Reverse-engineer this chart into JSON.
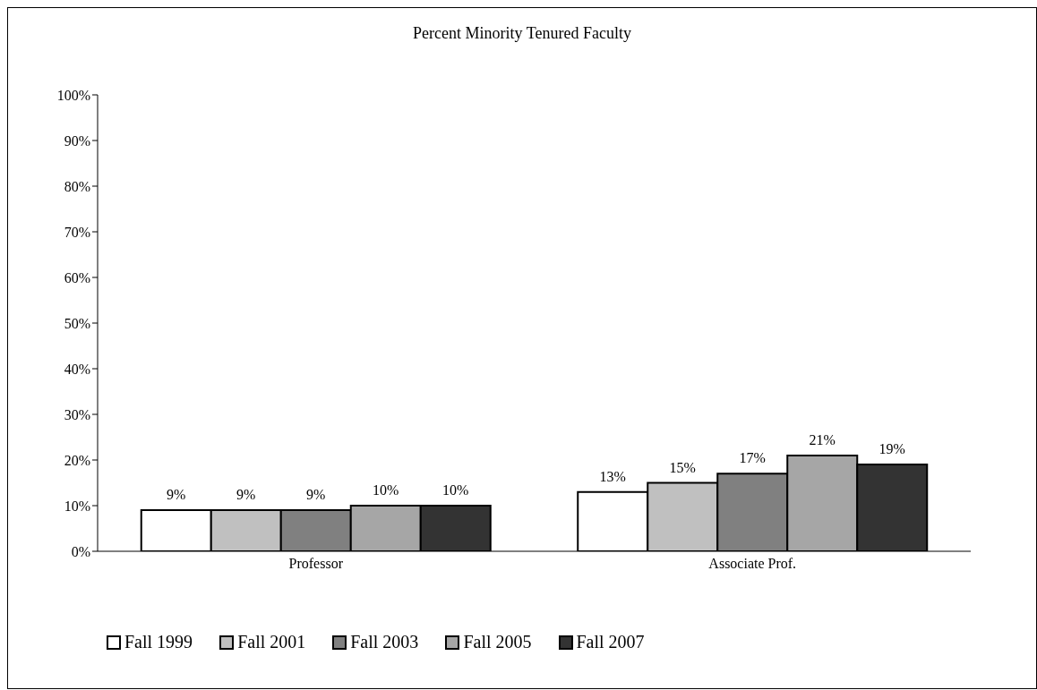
{
  "chart_data": {
    "type": "bar",
    "title": "Percent Minority Tenured Faculty",
    "categories": [
      "Professor",
      "Associate Prof."
    ],
    "series": [
      {
        "name": "Fall 1999",
        "color": "#ffffff",
        "values": [
          9,
          13
        ],
        "value_labels": [
          "9%",
          "13%"
        ]
      },
      {
        "name": "Fall 2001",
        "color": "#c0c0c0",
        "values": [
          9,
          15
        ],
        "value_labels": [
          "9%",
          "15%"
        ]
      },
      {
        "name": "Fall 2003",
        "color": "#808080",
        "values": [
          9,
          17
        ],
        "value_labels": [
          "9%",
          "17%"
        ]
      },
      {
        "name": "Fall 2005",
        "color": "#a6a6a6",
        "values": [
          10,
          21
        ],
        "value_labels": [
          "10%",
          "21%"
        ]
      },
      {
        "name": "Fall 2007",
        "color": "#333333",
        "values": [
          10,
          19
        ],
        "value_labels": [
          "10%",
          "19%"
        ]
      }
    ],
    "ylim": [
      0,
      100
    ],
    "yticks": [
      {
        "value": 0,
        "label": "0%"
      },
      {
        "value": 10,
        "label": "10%"
      },
      {
        "value": 20,
        "label": "20%"
      },
      {
        "value": 30,
        "label": "30%"
      },
      {
        "value": 40,
        "label": "40%"
      },
      {
        "value": 50,
        "label": "50%"
      },
      {
        "value": 60,
        "label": "60%"
      },
      {
        "value": 70,
        "label": "70%"
      },
      {
        "value": 80,
        "label": "80%"
      },
      {
        "value": 90,
        "label": "90%"
      },
      {
        "value": 100,
        "label": "100%"
      }
    ],
    "grid": false,
    "legend": "bottom"
  }
}
